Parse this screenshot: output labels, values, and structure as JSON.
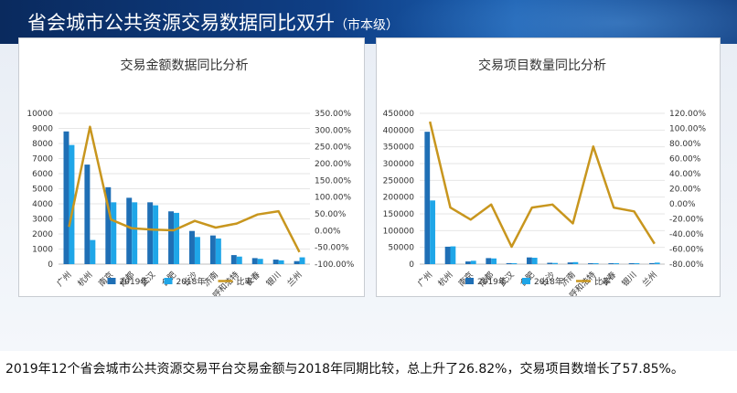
{
  "header": {
    "title": "省会城市公共资源交易数据同比双升",
    "subtitle": "（市本级）"
  },
  "caption": "2019年12个省会城市公共资源交易平台交易金额与2018年同期比较，总上升了26.82%，交易项目数增长了57.85%。",
  "colors": {
    "y2019": "#1f6fb5",
    "y2018": "#1fa6e8",
    "ratio": "#c8961e"
  },
  "chart_data": [
    {
      "type": "bar",
      "title": "交易金额数据同比分析",
      "categories": [
        "广州",
        "杭州",
        "南京",
        "成都",
        "武汉",
        "合肥",
        "长沙",
        "济南",
        "呼和浩特",
        "长春",
        "银川",
        "兰州"
      ],
      "series": [
        {
          "name": "2019年",
          "values": [
            8800,
            6600,
            5100,
            4400,
            4100,
            3500,
            2200,
            1900,
            600,
            400,
            300,
            200
          ]
        },
        {
          "name": "2018年",
          "values": [
            7900,
            1600,
            4100,
            4100,
            3900,
            3400,
            1800,
            1700,
            500,
            350,
            250,
            450
          ]
        },
        {
          "name": "比率",
          "axis": "right",
          "values": [
            11,
            310,
            33,
            7,
            3,
            1,
            29,
            9,
            21,
            48,
            58,
            -64
          ]
        }
      ],
      "ylim": [
        0,
        10000
      ],
      "yticks": [
        "0",
        "1000",
        "2000",
        "3000",
        "4000",
        "5000",
        "6000",
        "7000",
        "8000",
        "9000",
        "10000"
      ],
      "y2lim": [
        -100,
        350
      ],
      "y2ticks": [
        "-100.00%",
        "-50.00%",
        "0.00%",
        "50.00%",
        "100.00%",
        "150.00%",
        "200.00%",
        "250.00%",
        "300.00%",
        "350.00%"
      ],
      "legend": [
        "2019年",
        "2018年",
        "比率"
      ],
      "legend_position": "bottom"
    },
    {
      "type": "bar",
      "title": "交易项目数量同比分析",
      "categories": [
        "广州",
        "杭州",
        "南京",
        "成都",
        "武汉",
        "合肥",
        "长沙",
        "济南",
        "呼和浩特",
        "长春",
        "银川",
        "兰州"
      ],
      "series": [
        {
          "name": "2019年",
          "values": [
            395000,
            52000,
            8000,
            18000,
            3000,
            20000,
            4000,
            5000,
            1000,
            2000,
            1000,
            3000
          ]
        },
        {
          "name": "2018年",
          "values": [
            190000,
            53000,
            10000,
            17000,
            2500,
            19000,
            3500,
            6000,
            900,
            1500,
            800,
            4500
          ]
        },
        {
          "name": "比率",
          "axis": "right",
          "values": [
            109,
            -5,
            -21,
            -1,
            -57,
            -5,
            -1,
            -26,
            76,
            -5,
            -10,
            -53
          ]
        }
      ],
      "ylim": [
        0,
        450000
      ],
      "yticks": [
        "0",
        "50000",
        "100000",
        "150000",
        "200000",
        "250000",
        "300000",
        "350000",
        "400000",
        "450000"
      ],
      "y2lim": [
        -80,
        120
      ],
      "y2ticks": [
        "-80.00%",
        "-60.00%",
        "-40.00%",
        "-20.00%",
        "0.00%",
        "20.00%",
        "40.00%",
        "60.00%",
        "80.00%",
        "100.00%",
        "120.00%"
      ],
      "legend": [
        "2019年",
        "2018年",
        "比率"
      ],
      "legend_position": "bottom"
    }
  ]
}
